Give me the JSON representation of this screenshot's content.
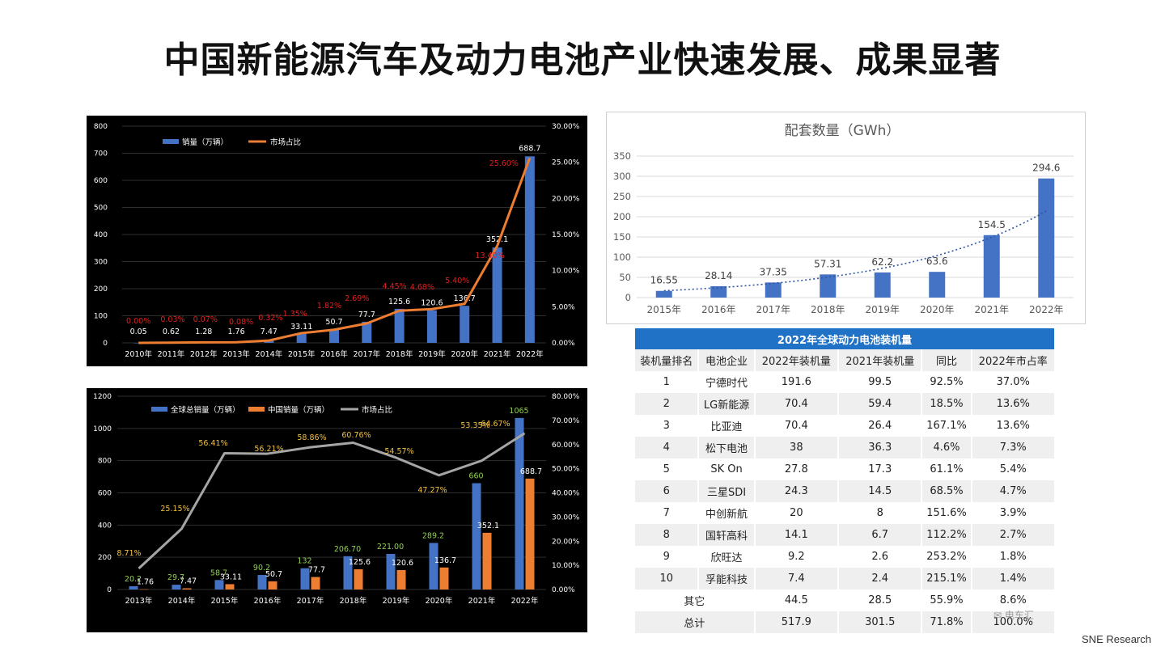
{
  "page": {
    "title": "中国新能源汽车及动力电池产业快速发展、成果显著",
    "source": "SNE Research",
    "watermark": "电车汇"
  },
  "colors": {
    "blue_bar": "#4472c4",
    "orange": "#ed7d31",
    "gray_line": "#a5a5a5",
    "red_label": "#e02020",
    "gold_label": "#f0c040",
    "green_label": "#92d050",
    "table_header": "#1f72c6"
  },
  "chart_data": [
    {
      "type": "bar+line",
      "background": "#000000",
      "legend": {
        "placement": "top-left",
        "entries": [
          "销量（万辆）",
          "市场占比"
        ]
      },
      "categories": [
        "2010年",
        "2011年",
        "2012年",
        "2013年",
        "2014年",
        "2015年",
        "2016年",
        "2017年",
        "2018年",
        "2019年",
        "2020年",
        "2021年",
        "2022年"
      ],
      "series": [
        {
          "name": "销量（万辆）",
          "type": "bar",
          "axis": "left",
          "values": [
            0.05,
            0.62,
            1.28,
            1.76,
            7.47,
            33.11,
            50.7,
            77.7,
            125.6,
            120.6,
            136.7,
            352.1,
            688.7
          ],
          "labels": [
            "0.05",
            "0.62",
            "1.28",
            "1.76",
            "7.47",
            "33.11",
            "50.7",
            "77.7",
            "125.6",
            "120.6",
            "136.7",
            "352.1",
            "688.7"
          ]
        },
        {
          "name": "市场占比",
          "type": "line",
          "axis": "right",
          "values": [
            0.0,
            0.03,
            0.07,
            0.08,
            0.32,
            1.35,
            1.82,
            2.69,
            4.45,
            4.68,
            5.4,
            13.4,
            25.6
          ],
          "labels": [
            "0.00%",
            "0.03%",
            "0.07%",
            "0.08%",
            "0.32%",
            "1.35%",
            "1.82%",
            "2.69%",
            "4.45%",
            "4.68%",
            "5.40%",
            "13.40%",
            "25.60%"
          ]
        }
      ],
      "yleft": {
        "min": 0,
        "max": 800,
        "ticks": [
          "0",
          "100",
          "200",
          "300",
          "400",
          "500",
          "600",
          "700",
          "800"
        ]
      },
      "yright": {
        "min": 0,
        "max": 30,
        "ticks": [
          "0.00%",
          "5.00%",
          "10.00%",
          "15.00%",
          "20.00%",
          "25.00%",
          "30.00%"
        ]
      },
      "grid": true
    },
    {
      "type": "bar+line",
      "background": "#000000",
      "legend": {
        "placement": "top-left",
        "entries": [
          "全球总销量（万辆）",
          "中国销量（万辆）",
          "市场占比"
        ]
      },
      "categories": [
        "2013年",
        "2014年",
        "2015年",
        "2016年",
        "2017年",
        "2018年",
        "2019年",
        "2020年",
        "2021年",
        "2022年"
      ],
      "series": [
        {
          "name": "全球总销量（万辆）",
          "type": "bar",
          "axis": "left",
          "values": [
            20.2,
            29.7,
            58.7,
            90.2,
            132,
            206.7,
            221,
            289.2,
            660,
            1065
          ],
          "labels": [
            "20.2",
            "29.7",
            "58.7",
            "90.2",
            "132",
            "206.70",
            "221.00",
            "289.2",
            "660",
            "1065"
          ]
        },
        {
          "name": "中国销量（万辆）",
          "type": "bar",
          "axis": "left",
          "values": [
            1.76,
            7.47,
            33.11,
            50.7,
            77.7,
            125.6,
            120.6,
            136.7,
            352.1,
            688.7
          ],
          "labels": [
            "1.76",
            "7.47",
            "33.11",
            "50.7",
            "77.7",
            "125.6",
            "120.6",
            "136.7",
            "352.1",
            "688.7"
          ]
        },
        {
          "name": "市场占比",
          "type": "line",
          "axis": "right",
          "values": [
            8.71,
            25.15,
            56.41,
            56.21,
            58.86,
            60.76,
            54.57,
            47.27,
            53.35,
            64.67
          ],
          "labels": [
            "8.71%",
            "25.15%",
            "56.41%",
            "56.21%",
            "58.86%",
            "60.76%",
            "54.57%",
            "47.27%",
            "53.35%",
            "64.67%"
          ]
        }
      ],
      "yleft": {
        "min": 0,
        "max": 1200,
        "ticks": [
          "0",
          "200",
          "400",
          "600",
          "800",
          "1000",
          "1200"
        ]
      },
      "yright": {
        "min": 0,
        "max": 80,
        "ticks": [
          "0.00%",
          "10.00%",
          "20.00%",
          "30.00%",
          "40.00%",
          "50.00%",
          "60.00%",
          "70.00%",
          "80.00%"
        ]
      },
      "grid": true
    },
    {
      "type": "bar",
      "title": "配套数量（GWh）",
      "categories": [
        "2015年",
        "2016年",
        "2017年",
        "2018年",
        "2019年",
        "2020年",
        "2021年",
        "2022年"
      ],
      "values": [
        16.55,
        28.14,
        37.35,
        57.31,
        62.2,
        63.6,
        154.5,
        294.6
      ],
      "labels": [
        "16.55",
        "28.14",
        "37.35",
        "57.31",
        "62.2",
        "63.6",
        "154.5",
        "294.6"
      ],
      "trendline": "exponential-dotted",
      "yleft": {
        "min": 0,
        "max": 350,
        "ticks": [
          "0",
          "50",
          "100",
          "150",
          "200",
          "250",
          "300",
          "350"
        ]
      },
      "grid": true
    },
    {
      "type": "table",
      "title": "2022年全球动力电池装机量",
      "columns": [
        "装机量排名",
        "电池企业",
        "2022年装机量",
        "2021年装机量",
        "同比",
        "2022年市占率"
      ],
      "rows": [
        [
          "1",
          "宁德时代",
          "191.6",
          "99.5",
          "92.5%",
          "37.0%"
        ],
        [
          "2",
          "LG新能源",
          "70.4",
          "59.4",
          "18.5%",
          "13.6%"
        ],
        [
          "3",
          "比亚迪",
          "70.4",
          "26.4",
          "167.1%",
          "13.6%"
        ],
        [
          "4",
          "松下电池",
          "38",
          "36.3",
          "4.6%",
          "7.3%"
        ],
        [
          "5",
          "SK On",
          "27.8",
          "17.3",
          "61.1%",
          "5.4%"
        ],
        [
          "6",
          "三星SDI",
          "24.3",
          "14.5",
          "68.5%",
          "4.7%"
        ],
        [
          "7",
          "中创新航",
          "20",
          "8",
          "151.6%",
          "3.9%"
        ],
        [
          "8",
          "国轩高科",
          "14.1",
          "6.7",
          "112.2%",
          "2.7%"
        ],
        [
          "9",
          "欣旺达",
          "9.2",
          "2.6",
          "253.2%",
          "1.8%"
        ],
        [
          "10",
          "孚能科技",
          "7.4",
          "2.4",
          "215.1%",
          "1.4%"
        ]
      ],
      "summary_rows": [
        [
          "其它",
          "44.5",
          "28.5",
          "55.9%",
          "8.6%"
        ],
        [
          "总计",
          "517.9",
          "301.5",
          "71.8%",
          "100.0%"
        ]
      ]
    }
  ]
}
